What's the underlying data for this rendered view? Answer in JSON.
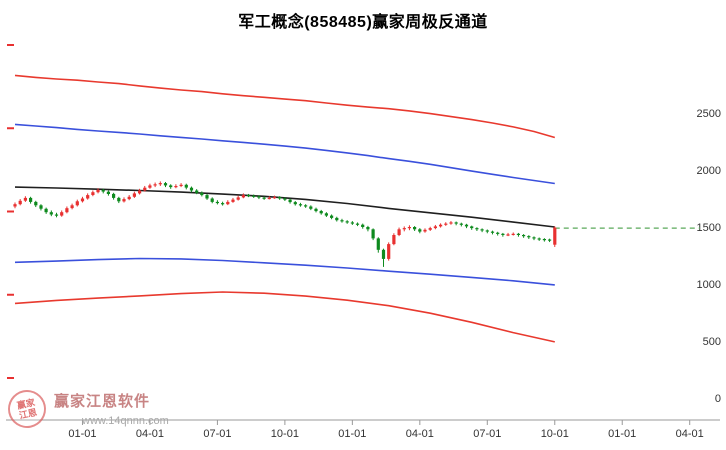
{
  "title": "军工概念(858485)赢家周极反通道",
  "watermark": {
    "brand": "赢家江恩软件",
    "url": "www.14qnnn.com",
    "seal_line1": "赢家",
    "seal_line2": "江恩"
  },
  "colors": {
    "up": "#e83030",
    "down": "#0e8a1e",
    "channel_red": "#e8392e",
    "channel_blue": "#3a50dc",
    "midline": "#1f1f1f",
    "projection": "#5aa85a",
    "axis": "#999999",
    "tick_red": "#e83030",
    "label": "#333333"
  },
  "chart_data": {
    "type": "candlestick",
    "title": "军工概念(858485)赢家周极反通道",
    "xlabel": "",
    "ylabel": "",
    "ylim": [
      0,
      2900
    ],
    "grid": false,
    "legend": "none",
    "y_ticks": [
      2500,
      2000,
      1500,
      1000,
      500,
      0
    ],
    "x_ticks": {
      "weeks": [
        13,
        26,
        39,
        52,
        65,
        78,
        91,
        104,
        117,
        130
      ],
      "labels": [
        "01-01",
        "04-01",
        "07-01",
        "10-01",
        "01-01",
        "04-01",
        "07-01",
        "10-01",
        "01-01",
        "04-01"
      ]
    },
    "weeks_total": 132,
    "candles": [
      [
        1680,
        1715,
        1665,
        1700
      ],
      [
        1700,
        1745,
        1690,
        1730
      ],
      [
        1730,
        1770,
        1720,
        1755
      ],
      [
        1755,
        1765,
        1705,
        1720
      ],
      [
        1720,
        1730,
        1675,
        1690
      ],
      [
        1690,
        1700,
        1645,
        1660
      ],
      [
        1660,
        1670,
        1615,
        1630
      ],
      [
        1630,
        1645,
        1595,
        1610
      ],
      [
        1610,
        1625,
        1585,
        1600
      ],
      [
        1600,
        1645,
        1590,
        1630
      ],
      [
        1630,
        1680,
        1620,
        1665
      ],
      [
        1665,
        1705,
        1655,
        1690
      ],
      [
        1690,
        1740,
        1680,
        1725
      ],
      [
        1725,
        1765,
        1715,
        1750
      ],
      [
        1750,
        1795,
        1740,
        1780
      ],
      [
        1780,
        1820,
        1770,
        1805
      ],
      [
        1805,
        1840,
        1795,
        1825
      ],
      [
        1825,
        1835,
        1795,
        1810
      ],
      [
        1810,
        1820,
        1775,
        1790
      ],
      [
        1790,
        1800,
        1740,
        1755
      ],
      [
        1755,
        1765,
        1710,
        1725
      ],
      [
        1725,
        1760,
        1715,
        1745
      ],
      [
        1745,
        1780,
        1735,
        1765
      ],
      [
        1765,
        1810,
        1755,
        1795
      ],
      [
        1795,
        1835,
        1785,
        1820
      ],
      [
        1820,
        1860,
        1810,
        1845
      ],
      [
        1845,
        1880,
        1835,
        1865
      ],
      [
        1865,
        1890,
        1850,
        1875
      ],
      [
        1875,
        1900,
        1860,
        1885
      ],
      [
        1885,
        1895,
        1850,
        1865
      ],
      [
        1865,
        1875,
        1835,
        1850
      ],
      [
        1850,
        1875,
        1840,
        1860
      ],
      [
        1860,
        1885,
        1850,
        1870
      ],
      [
        1870,
        1880,
        1830,
        1845
      ],
      [
        1845,
        1855,
        1805,
        1820
      ],
      [
        1820,
        1832,
        1788,
        1800
      ],
      [
        1800,
        1812,
        1768,
        1780
      ],
      [
        1780,
        1790,
        1738,
        1750
      ],
      [
        1750,
        1760,
        1708,
        1720
      ],
      [
        1720,
        1735,
        1698,
        1710
      ],
      [
        1710,
        1722,
        1688,
        1700
      ],
      [
        1700,
        1735,
        1692,
        1720
      ],
      [
        1720,
        1755,
        1712,
        1740
      ],
      [
        1740,
        1775,
        1732,
        1760
      ],
      [
        1760,
        1795,
        1752,
        1780
      ],
      [
        1780,
        1790,
        1762,
        1775
      ],
      [
        1775,
        1785,
        1755,
        1768
      ],
      [
        1768,
        1778,
        1745,
        1758
      ],
      [
        1758,
        1768,
        1738,
        1750
      ],
      [
        1750,
        1770,
        1742,
        1755
      ],
      [
        1755,
        1775,
        1748,
        1762
      ],
      [
        1762,
        1770,
        1738,
        1750
      ],
      [
        1750,
        1760,
        1728,
        1740
      ],
      [
        1740,
        1748,
        1705,
        1718
      ],
      [
        1718,
        1728,
        1688,
        1700
      ],
      [
        1700,
        1712,
        1678,
        1690
      ],
      [
        1690,
        1700,
        1668,
        1680
      ],
      [
        1680,
        1690,
        1648,
        1660
      ],
      [
        1660,
        1670,
        1628,
        1640
      ],
      [
        1640,
        1650,
        1608,
        1620
      ],
      [
        1620,
        1630,
        1588,
        1600
      ],
      [
        1600,
        1610,
        1568,
        1580
      ],
      [
        1580,
        1590,
        1548,
        1560
      ],
      [
        1560,
        1572,
        1538,
        1550
      ],
      [
        1550,
        1560,
        1528,
        1540
      ],
      [
        1540,
        1552,
        1518,
        1530
      ],
      [
        1530,
        1540,
        1508,
        1520
      ],
      [
        1520,
        1530,
        1485,
        1500
      ],
      [
        1500,
        1510,
        1462,
        1480
      ],
      [
        1480,
        1488,
        1385,
        1400
      ],
      [
        1400,
        1410,
        1275,
        1300
      ],
      [
        1300,
        1310,
        1150,
        1220
      ],
      [
        1220,
        1365,
        1205,
        1350
      ],
      [
        1350,
        1445,
        1340,
        1430
      ],
      [
        1430,
        1495,
        1420,
        1480
      ],
      [
        1480,
        1505,
        1462,
        1490
      ],
      [
        1490,
        1515,
        1472,
        1500
      ],
      [
        1500,
        1508,
        1465,
        1480
      ],
      [
        1480,
        1490,
        1445,
        1460
      ],
      [
        1460,
        1488,
        1450,
        1475
      ],
      [
        1475,
        1502,
        1465,
        1490
      ],
      [
        1490,
        1518,
        1480,
        1505
      ],
      [
        1505,
        1532,
        1495,
        1520
      ],
      [
        1520,
        1542,
        1510,
        1530
      ],
      [
        1530,
        1552,
        1520,
        1540
      ],
      [
        1540,
        1548,
        1515,
        1530
      ],
      [
        1530,
        1538,
        1505,
        1520
      ],
      [
        1520,
        1528,
        1490,
        1505
      ],
      [
        1505,
        1512,
        1475,
        1490
      ],
      [
        1490,
        1498,
        1465,
        1480
      ],
      [
        1480,
        1488,
        1455,
        1470
      ],
      [
        1470,
        1478,
        1445,
        1460
      ],
      [
        1460,
        1468,
        1435,
        1450
      ],
      [
        1450,
        1458,
        1425,
        1440
      ],
      [
        1440,
        1448,
        1415,
        1430
      ],
      [
        1430,
        1448,
        1420,
        1435
      ],
      [
        1435,
        1452,
        1425,
        1440
      ],
      [
        1440,
        1448,
        1415,
        1430
      ],
      [
        1430,
        1438,
        1405,
        1420
      ],
      [
        1420,
        1428,
        1395,
        1410
      ],
      [
        1410,
        1418,
        1385,
        1400
      ],
      [
        1400,
        1408,
        1378,
        1395
      ],
      [
        1395,
        1402,
        1372,
        1390
      ],
      [
        1390,
        1398,
        1368,
        1385
      ],
      [
        1345,
        1505,
        1325,
        1495
      ]
    ],
    "lines": [
      {
        "name": "upper-outer-red-channel",
        "color_key": "channel_red",
        "width": 1.6,
        "step": 4,
        "values": [
          2830,
          2812,
          2798,
          2788,
          2772,
          2758,
          2738,
          2718,
          2702,
          2688,
          2668,
          2652,
          2638,
          2622,
          2608,
          2588,
          2568,
          2552,
          2538,
          2518,
          2495,
          2468,
          2442,
          2412,
          2378,
          2338,
          2285
        ]
      },
      {
        "name": "upper-inner-blue-channel",
        "color_key": "channel_blue",
        "width": 1.6,
        "step": 4,
        "values": [
          2400,
          2386,
          2372,
          2356,
          2342,
          2330,
          2316,
          2300,
          2286,
          2272,
          2256,
          2242,
          2226,
          2210,
          2192,
          2172,
          2150,
          2126,
          2100,
          2076,
          2050,
          2020,
          1990,
          1962,
          1934,
          1908,
          1882
        ]
      },
      {
        "name": "midline-black",
        "color_key": "midline",
        "width": 1.6,
        "step": 8,
        "values": [
          1850,
          1842,
          1832,
          1820,
          1806,
          1789,
          1769,
          1742,
          1706,
          1663,
          1625,
          1586,
          1543,
          1500
        ]
      },
      {
        "name": "lower-inner-blue-channel",
        "color_key": "channel_blue",
        "width": 1.6,
        "step": 8,
        "values": [
          1190,
          1201,
          1214,
          1224,
          1220,
          1206,
          1186,
          1165,
          1140,
          1112,
          1086,
          1058,
          1028,
          992
        ]
      },
      {
        "name": "lower-outer-red-channel",
        "color_key": "channel_red",
        "width": 1.6,
        "step": 8,
        "values": [
          830,
          856,
          876,
          896,
          916,
          930,
          919,
          894,
          858,
          810,
          744,
          664,
          574,
          492
        ]
      }
    ],
    "projection": {
      "name": "channel-projection-dashed",
      "color_key": "projection",
      "value": 1490,
      "from_week": 104,
      "to_week": 132,
      "dash": "5 4"
    }
  }
}
